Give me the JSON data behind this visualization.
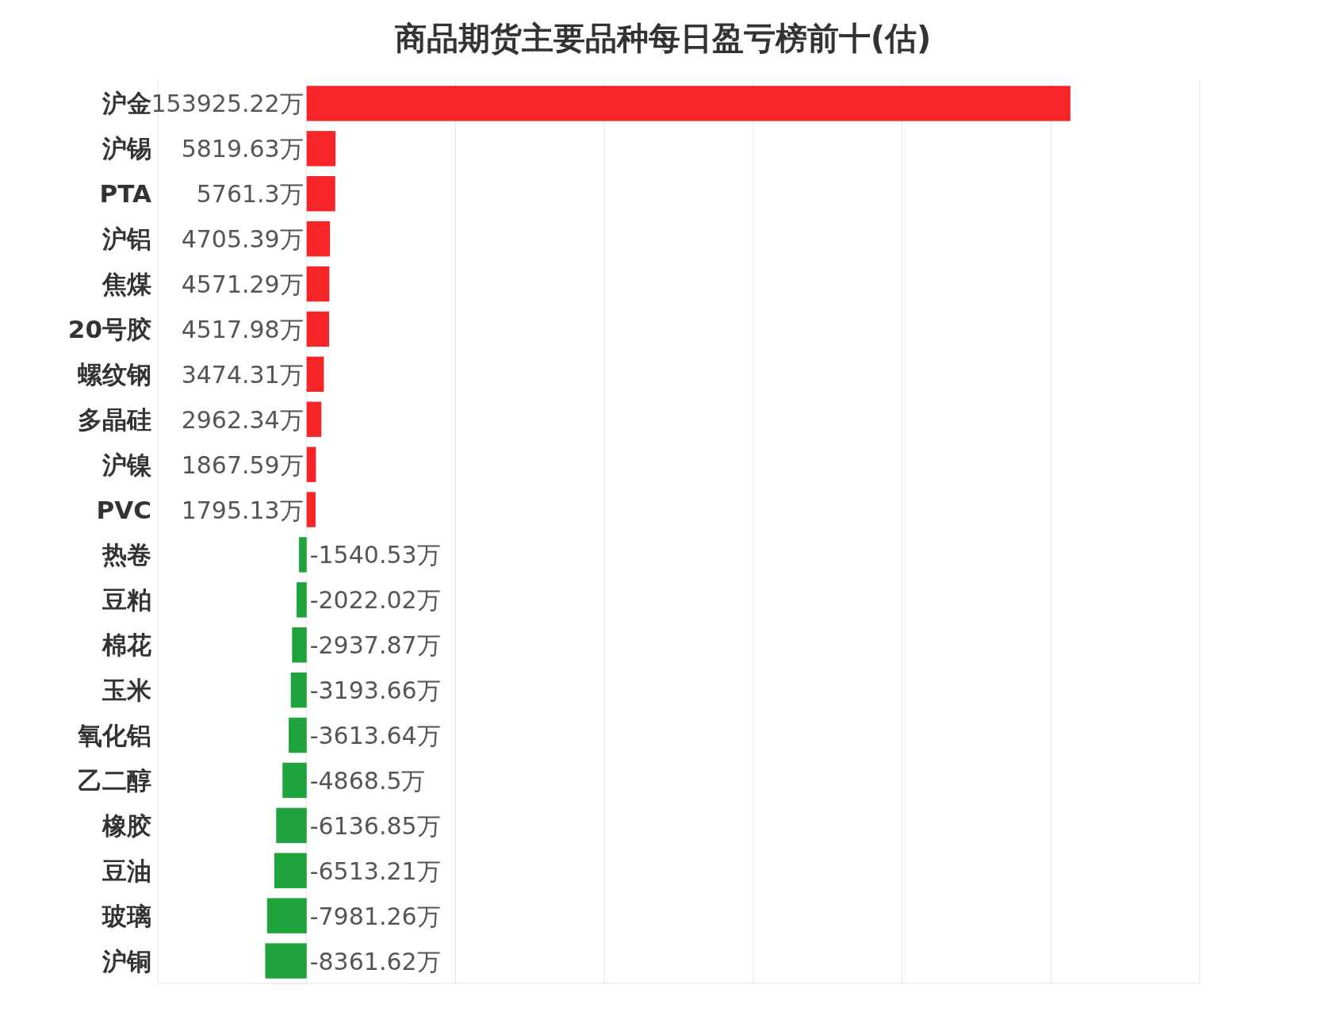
{
  "chart_data": {
    "type": "bar",
    "orientation": "horizontal",
    "title": "商品期货主要品种每日盈亏榜前十(估)",
    "categories": [
      "沪金",
      "沪锡",
      "PTA",
      "沪铝",
      "焦煤",
      "20号胶",
      "螺纹钢",
      "多晶硅",
      "沪镍",
      "PVC",
      "热卷",
      "豆粕",
      "棉花",
      "玉米",
      "氧化铝",
      "乙二醇",
      "橡胶",
      "豆油",
      "玻璃",
      "沪铜"
    ],
    "values": [
      153925.22,
      5819.63,
      5761.3,
      4705.39,
      4571.29,
      4517.98,
      3474.31,
      2962.34,
      1867.59,
      1795.13,
      -1540.53,
      -2022.02,
      -2937.87,
      -3193.66,
      -3613.64,
      -4868.5,
      -6136.85,
      -6513.21,
      -7981.26,
      -8361.62
    ],
    "value_labels": [
      "153925.22万",
      "5819.63万",
      "5761.3万",
      "4705.39万",
      "4571.29万",
      "4517.98万",
      "3474.31万",
      "2962.34万",
      "1867.59万",
      "1795.13万",
      "-1540.53万",
      "-2022.02万",
      "-2937.87万",
      "-3193.66万",
      "-3613.64万",
      "-4868.5万",
      "-6136.85万",
      "-6513.21万",
      "-7981.26万",
      "-8361.62万"
    ],
    "colors": [
      "#f72527",
      "#f72527",
      "#f72527",
      "#f72527",
      "#f72527",
      "#f72527",
      "#f72527",
      "#f72527",
      "#f72527",
      "#f72527",
      "#1fa33c",
      "#1fa33c",
      "#1fa33c",
      "#1fa33c",
      "#1fa33c",
      "#1fa33c",
      "#1fa33c",
      "#1fa33c",
      "#1fa33c",
      "#1fa33c"
    ],
    "xlim": [
      -30000,
      180000
    ],
    "xticks": [
      {
        "value": -30000,
        "label": null
      },
      {
        "value": 0,
        "label": null
      },
      {
        "value": 30000,
        "label": null
      },
      {
        "value": 60000,
        "label": null
      },
      {
        "value": 90000,
        "label": null
      },
      {
        "value": 120000,
        "label": null
      },
      {
        "value": 150000,
        "label": null
      },
      {
        "value": 180000,
        "label": null
      }
    ],
    "grid": "x",
    "tick_labels": "y"
  }
}
